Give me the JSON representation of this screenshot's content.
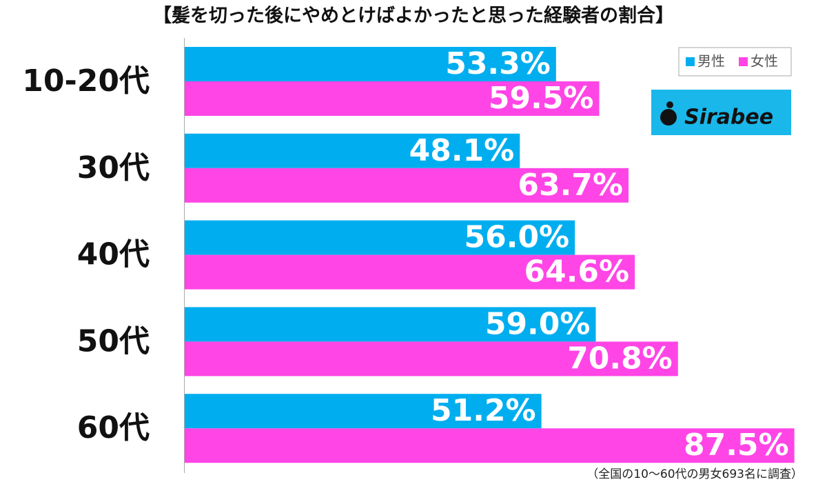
{
  "chart_data": {
    "type": "bar",
    "orientation": "horizontal",
    "title": "【髪を切った後にやめとけばよかったと思った経験者の割合】",
    "categories": [
      "10-20代",
      "30代",
      "40代",
      "50代",
      "60代"
    ],
    "series": [
      {
        "name": "男性",
        "color": "#00aeef",
        "values": [
          53.3,
          48.1,
          56.0,
          59.0,
          51.2
        ],
        "value_labels": [
          "53.3%",
          "48.1%",
          "56.0%",
          "59.0%",
          "51.2%"
        ]
      },
      {
        "name": "女性",
        "color": "#ff45e6",
        "values": [
          59.5,
          63.7,
          64.6,
          70.8,
          87.5
        ],
        "value_labels": [
          "59.5%",
          "63.7%",
          "64.6%",
          "70.8%",
          "87.5%"
        ]
      }
    ],
    "legend": "top-right",
    "logo": "Sirabee",
    "note": "（全国の10〜60代の男女693名に調査）"
  }
}
